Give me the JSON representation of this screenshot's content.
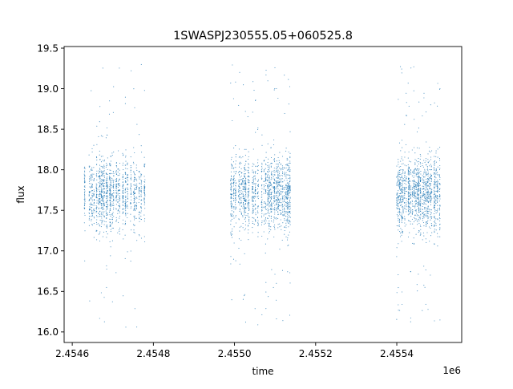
{
  "chart_data": {
    "type": "scatter",
    "title": "1SWASPJ230555.05+060525.8",
    "xlabel": "time",
    "ylabel": "flux",
    "x_offset_label": "1e6",
    "xlim": [
      2.45458,
      2.45556
    ],
    "ylim": [
      15.87,
      19.52
    ],
    "x_ticks": [
      {
        "value": 2.4546,
        "label": "2.4546"
      },
      {
        "value": 2.4548,
        "label": "2.4548"
      },
      {
        "value": 2.455,
        "label": "2.4550"
      },
      {
        "value": 2.4552,
        "label": "2.4552"
      },
      {
        "value": 2.4554,
        "label": "2.4554"
      }
    ],
    "y_ticks": [
      {
        "value": 16.0,
        "label": "16.0"
      },
      {
        "value": 16.5,
        "label": "16.5"
      },
      {
        "value": 17.0,
        "label": "17.0"
      },
      {
        "value": 17.5,
        "label": "17.5"
      },
      {
        "value": 18.0,
        "label": "18.0"
      },
      {
        "value": 18.5,
        "label": "18.5"
      },
      {
        "value": 19.0,
        "label": "19.0"
      },
      {
        "value": 19.5,
        "label": "19.5"
      }
    ],
    "grid": false,
    "legend": "none",
    "point_color": "#1f77b4",
    "observing_seasons": [
      {
        "x_start": 2.45463,
        "x_end": 2.45478,
        "flux_center": 17.7,
        "flux_min": 16.05,
        "flux_max": 19.3
      },
      {
        "x_start": 2.45499,
        "x_end": 2.45514,
        "flux_center": 17.7,
        "flux_min": 16.05,
        "flux_max": 19.3
      },
      {
        "x_start": 2.4554,
        "x_end": 2.45551,
        "flux_center": 17.7,
        "flux_min": 16.1,
        "flux_max": 19.28
      }
    ]
  }
}
